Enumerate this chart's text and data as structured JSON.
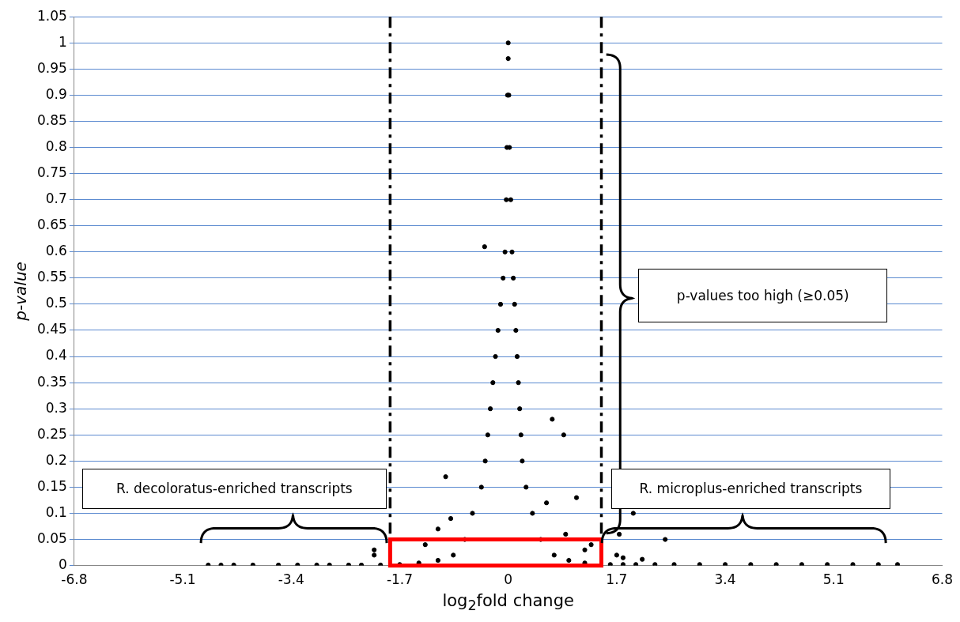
{
  "chart_data": {
    "type": "scatter",
    "xlabel": "log$_{2}$fold change",
    "ylabel": "p-value",
    "series": [
      {
        "color": "#000000",
        "x": [
          0,
          0,
          -0.01,
          0.01,
          -0.02,
          0.02,
          -0.03,
          0.04,
          -0.05,
          0.06,
          -0.08,
          0.08,
          -0.12,
          0.1,
          -0.16,
          0.12,
          -0.2,
          0.14,
          -0.24,
          0.16,
          -0.28,
          0.18,
          -0.32,
          0.2,
          -0.36,
          0.22,
          -0.42,
          0.28,
          -0.56,
          0.38,
          -0.68,
          0.51,
          -0.86,
          0.72,
          -1.1,
          0.95,
          -1.4,
          1.2,
          -0.37,
          -0.98,
          0.69,
          0.87,
          1.07,
          1.96,
          2.46,
          1.74,
          -1.1,
          -1.3,
          -0.9,
          0.6,
          0.9,
          1.2,
          1.3,
          -2.1,
          -2.1,
          -4.7,
          -4.5,
          -4.3,
          -4.0,
          -3.6,
          -3.3,
          -3.0,
          -2.8,
          -2.5,
          -2.3,
          -2.0,
          -1.7,
          1.6,
          1.8,
          2.0,
          2.3,
          2.6,
          3.0,
          3.4,
          3.8,
          4.2,
          4.6,
          5.0,
          5.4,
          5.8,
          6.1,
          1.8,
          2.1,
          1.7
        ],
        "values": [
          1,
          0.97,
          0.9,
          0.9,
          0.8,
          0.8,
          0.7,
          0.7,
          0.6,
          0.6,
          0.55,
          0.55,
          0.5,
          0.5,
          0.45,
          0.45,
          0.4,
          0.4,
          0.35,
          0.35,
          0.3,
          0.3,
          0.25,
          0.25,
          0.2,
          0.2,
          0.15,
          0.15,
          0.1,
          0.1,
          0.05,
          0.05,
          0.02,
          0.02,
          0.01,
          0.01,
          0.005,
          0.005,
          0.61,
          0.17,
          0.28,
          0.25,
          0.13,
          0.1,
          0.05,
          0.06,
          0.07,
          0.04,
          0.09,
          0.12,
          0.06,
          0.03,
          0.04,
          0.03,
          0.02,
          0.001,
          0.001,
          0.001,
          0.001,
          0.001,
          0.001,
          0.001,
          0.001,
          0.001,
          0.001,
          0.001,
          0.002,
          0.002,
          0.002,
          0.002,
          0.002,
          0.002,
          0.002,
          0.002,
          0.002,
          0.002,
          0.002,
          0.002,
          0.002,
          0.002,
          0.002,
          0.015,
          0.012,
          0.02
        ]
      }
    ],
    "xlim": [
      -6.8,
      6.8
    ],
    "xticks": [
      -6.8,
      -5.1,
      -3.4,
      -1.7,
      0,
      1.7,
      3.4,
      5.1,
      6.8
    ],
    "ylim": [
      0,
      1.05
    ],
    "yticks": [
      0,
      0.05,
      0.1,
      0.15,
      0.2,
      0.25,
      0.3,
      0.35,
      0.4,
      0.45,
      0.5,
      0.55,
      0.6,
      0.65,
      0.7,
      0.75,
      0.8,
      0.85,
      0.9,
      0.95,
      1,
      1.05
    ],
    "grid": "y",
    "marker": "circle",
    "legend": false,
    "ref_lines": [
      {
        "axis": "x",
        "value": -1.85,
        "color": "#000000",
        "line_style": "dashed"
      },
      {
        "axis": "x",
        "value": 1.46,
        "color": "#000000",
        "line_style": "dashed"
      }
    ],
    "annotations": [
      "R. decoloratus-enriched transcripts",
      "R. microplus-enriched transcripts",
      "p-values too high (≥0.05)"
    ]
  }
}
